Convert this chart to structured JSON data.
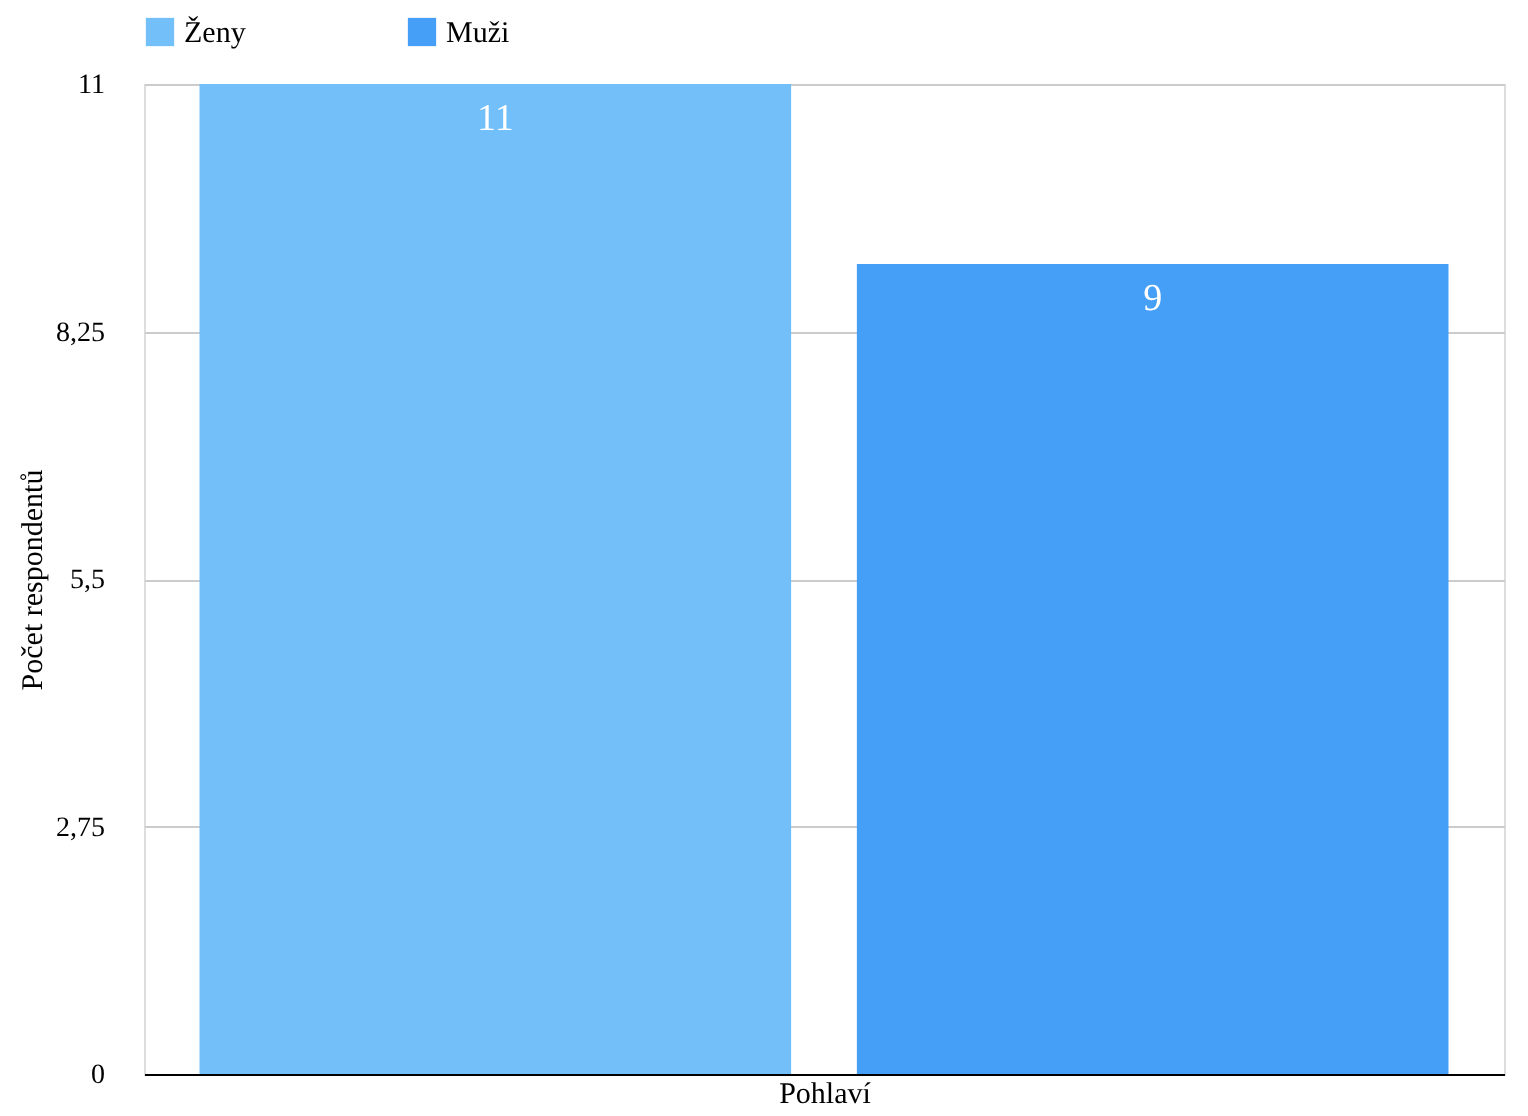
{
  "chart_data": {
    "type": "bar",
    "xlabel": "Pohlaví",
    "ylabel": "Počet respondentů",
    "categories": [
      null
    ],
    "series": [
      {
        "name": "Ženy",
        "color": "#73bff9",
        "values": [
          11
        ]
      },
      {
        "name": "Muži",
        "color": "#469ff7",
        "values": [
          9
        ]
      }
    ],
    "ylim": [
      0,
      11
    ],
    "yticks": [
      0,
      {
        "value": 2.75,
        "label": "2,75"
      },
      {
        "value": 5.5,
        "label": "5,5"
      },
      {
        "value": 8.25,
        "label": "8,25"
      },
      11
    ],
    "grid": "y",
    "legend": "top",
    "data_labels": true
  }
}
